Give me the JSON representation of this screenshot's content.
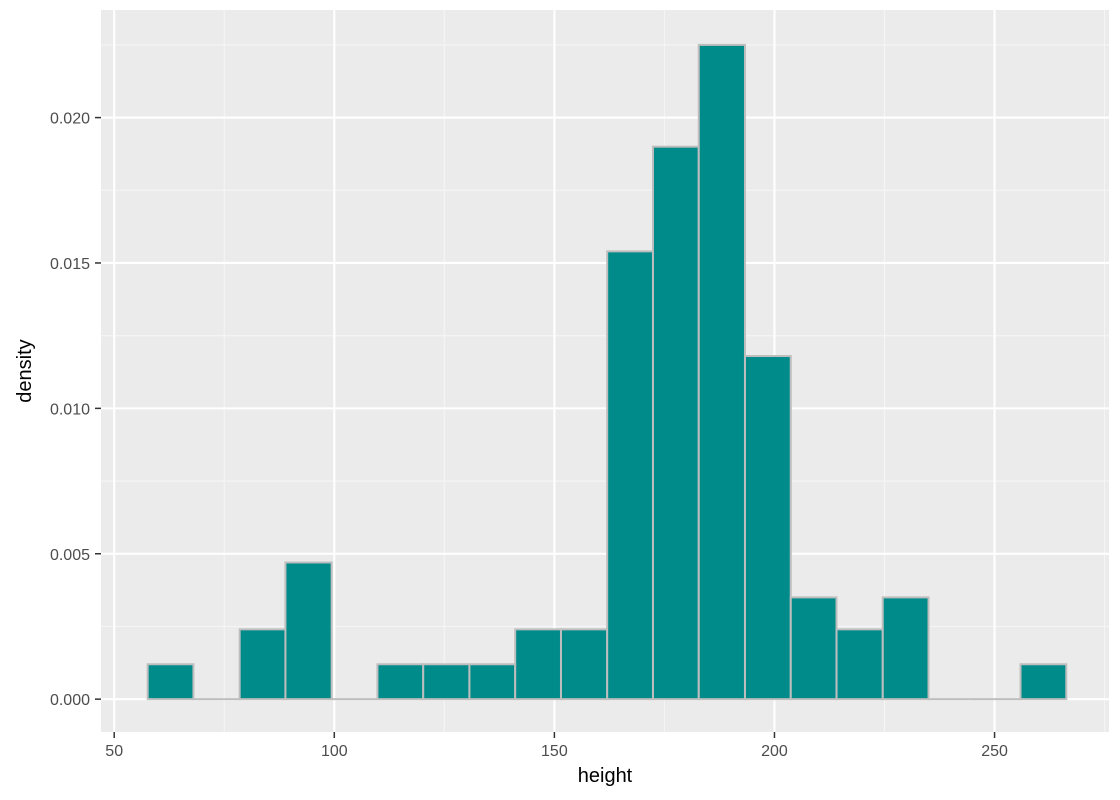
{
  "chart_data": {
    "type": "bar",
    "subtype": "histogram",
    "title": "",
    "xlabel": "height",
    "ylabel": "density",
    "xlim": [
      47,
      276
    ],
    "ylim": [
      -0.00113,
      0.0237
    ],
    "x_ticks": [
      50,
      100,
      150,
      200,
      250
    ],
    "x_tick_labels": [
      "50",
      "100",
      "150",
      "200",
      "250"
    ],
    "y_ticks": [
      0,
      0.005,
      0.01,
      0.015,
      0.02
    ],
    "y_tick_labels": [
      "0.000",
      "0.005",
      "0.010",
      "0.015",
      "0.020"
    ],
    "grid": true,
    "legend": "none",
    "bins": [
      {
        "x0": 57.6,
        "x1": 68.0,
        "density": 0.0012
      },
      {
        "x0": 68.0,
        "x1": 78.5,
        "density": 0.0
      },
      {
        "x0": 78.5,
        "x1": 88.9,
        "density": 0.0024
      },
      {
        "x0": 88.9,
        "x1": 99.4,
        "density": 0.0047
      },
      {
        "x0": 99.4,
        "x1": 109.8,
        "density": 0.0
      },
      {
        "x0": 109.8,
        "x1": 120.2,
        "density": 0.0012
      },
      {
        "x0": 120.2,
        "x1": 130.7,
        "density": 0.0012
      },
      {
        "x0": 130.7,
        "x1": 141.1,
        "density": 0.0012
      },
      {
        "x0": 141.1,
        "x1": 151.5,
        "density": 0.0024
      },
      {
        "x0": 151.5,
        "x1": 162.0,
        "density": 0.0024
      },
      {
        "x0": 162.0,
        "x1": 172.4,
        "density": 0.0154
      },
      {
        "x0": 172.4,
        "x1": 182.8,
        "density": 0.019
      },
      {
        "x0": 182.8,
        "x1": 193.3,
        "density": 0.0225
      },
      {
        "x0": 193.3,
        "x1": 203.7,
        "density": 0.0118
      },
      {
        "x0": 203.7,
        "x1": 214.1,
        "density": 0.0035
      },
      {
        "x0": 214.1,
        "x1": 224.6,
        "density": 0.0024
      },
      {
        "x0": 224.6,
        "x1": 235.0,
        "density": 0.0035
      },
      {
        "x0": 235.0,
        "x1": 245.4,
        "density": 0.0
      },
      {
        "x0": 245.4,
        "x1": 255.9,
        "density": 0.0
      },
      {
        "x0": 255.9,
        "x1": 266.3,
        "density": 0.0012
      }
    ],
    "colors": {
      "fill": "#008b8b",
      "outline": "#bebebe",
      "panel_background": "#ebebeb",
      "grid_major": "#ffffff",
      "grid_minor": "#f5f5f5"
    }
  }
}
